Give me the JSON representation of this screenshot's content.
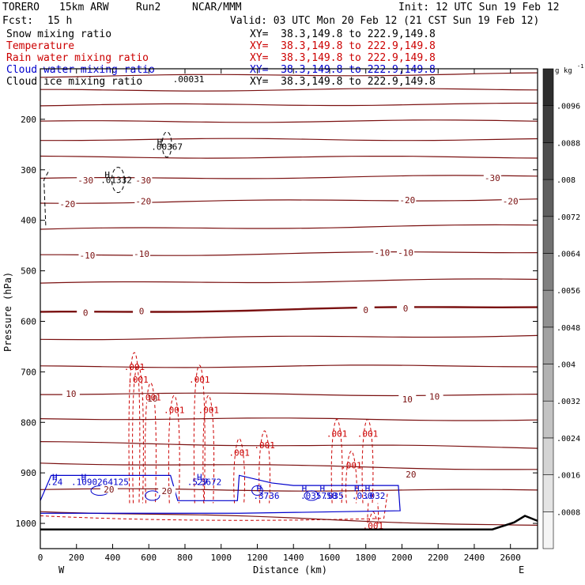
{
  "header": {
    "model": "TORERO",
    "resolution": "15km ARW",
    "run": "Run2",
    "center": "NCAR/MMM",
    "forecast_label": "Fcst:",
    "forecast_hours": "15 h",
    "init": "Init: 12 UTC Sun 19 Feb 12",
    "valid": "Valid: 03 UTC Mon 20 Feb 12 (21 CST Sun 19 Feb 12)"
  },
  "fields": [
    {
      "name": "Snow mixing ratio",
      "xy": "XY=  38.3,149.8 to 222.9,149.8",
      "color": "#000000"
    },
    {
      "name": "Temperature",
      "xy": "XY=  38.3,149.8 to 222.9,149.8",
      "color": "#cc0000"
    },
    {
      "name": "Rain water mixing ratio",
      "xy": "XY=  38.3,149.8 to 222.9,149.8",
      "color": "#cc0000"
    },
    {
      "name": "Cloud water mixing ratio",
      "xy": "XY=  38.3,149.8 to 222.9,149.8",
      "color": "#0000cc"
    },
    {
      "name": "Cloud ice mixing ratio",
      "xy": "XY=  38.3,149.8 to 222.9,149.8",
      "color": "#000000"
    }
  ],
  "chart_data": {
    "type": "heatmap",
    "xlabel": "Distance (km)",
    "ylabel": "Pressure (hPa)",
    "xlim": [
      0,
      2750
    ],
    "ylim": [
      100,
      1050
    ],
    "x_ticks": [
      0,
      200,
      400,
      600,
      800,
      1000,
      1200,
      1400,
      1600,
      1800,
      2000,
      2200,
      2400,
      2600
    ],
    "y_ticks": [
      200,
      300,
      400,
      500,
      600,
      700,
      800,
      900,
      1000
    ],
    "west_label": "W",
    "east_label": "E",
    "colorbar": {
      "unit": "g kg",
      "unit_exponent": "-1",
      "ticks": [
        ".0096",
        ".0088",
        ".008",
        ".0072",
        ".0064",
        ".0056",
        ".0048",
        ".004",
        ".0032",
        ".0024",
        ".0016",
        ".0008"
      ],
      "tick_values": [
        0.0096,
        0.0088,
        0.008,
        0.0072,
        0.0064,
        0.0056,
        0.0048,
        0.004,
        0.0032,
        0.0024,
        0.0016,
        0.0008
      ],
      "min": 0,
      "max": 0.0104
    },
    "temperature_isotherms": [
      {
        "label": "-30",
        "label_positions": [
          [
            250,
            321
          ],
          [
            570,
            321
          ],
          [
            2500,
            316
          ]
        ]
      },
      {
        "label": "-20",
        "label_positions": [
          [
            150,
            368
          ],
          [
            570,
            362
          ],
          [
            2030,
            360
          ],
          [
            2600,
            362
          ]
        ]
      },
      {
        "label": "-10",
        "label_positions": [
          [
            260,
            469
          ],
          [
            560,
            466
          ],
          [
            1890,
            464
          ],
          [
            2020,
            464
          ]
        ]
      },
      {
        "label": "0",
        "label_positions": [
          [
            250,
            583
          ],
          [
            560,
            580
          ],
          [
            1800,
            577
          ],
          [
            2020,
            574
          ]
        ]
      },
      {
        "label": "10",
        "label_positions": [
          [
            170,
            743
          ],
          [
            620,
            753
          ],
          [
            2030,
            754
          ],
          [
            2180,
            749
          ]
        ]
      },
      {
        "label": "20",
        "label_positions": [
          [
            380,
            933
          ],
          [
            700,
            936
          ],
          [
            2050,
            903
          ]
        ]
      }
    ],
    "temperature_lines": [
      {
        "p_left": 115,
        "p_right": 110
      },
      {
        "p_left": 143,
        "p_right": 140
      },
      {
        "p_left": 172,
        "p_right": 170
      },
      {
        "p_left": 205,
        "p_right": 203
      },
      {
        "p_left": 240,
        "p_right": 240
      },
      {
        "p_left": 275,
        "p_right": 275
      },
      {
        "p_left": 318,
        "p_right": 312
      },
      {
        "p_left": 365,
        "p_right": 358
      },
      {
        "p_left": 418,
        "p_right": 410
      },
      {
        "p_left": 470,
        "p_right": 462
      },
      {
        "p_left": 525,
        "p_right": 517
      },
      {
        "p_left": 583,
        "p_right": 570,
        "bold": true
      },
      {
        "p_left": 635,
        "p_right": 628
      },
      {
        "p_left": 690,
        "p_right": 688
      },
      {
        "p_left": 743,
        "p_right": 746
      },
      {
        "p_left": 792,
        "p_right": 795
      },
      {
        "p_left": 840,
        "p_right": 850
      },
      {
        "p_left": 880,
        "p_right": 893
      },
      {
        "p_left": 933,
        "p_right": 935
      },
      {
        "p_left": 975,
        "p_right": 1005
      }
    ],
    "rain_label": ".001",
    "rain_label_positions": [
      [
        520,
        690
      ],
      [
        540,
        715
      ],
      [
        610,
        750
      ],
      [
        740,
        775
      ],
      [
        880,
        715
      ],
      [
        930,
        775
      ],
      [
        1100,
        860
      ],
      [
        1240,
        845
      ],
      [
        1640,
        822
      ],
      [
        1720,
        885
      ],
      [
        1810,
        822
      ],
      [
        1840,
        1005
      ]
    ],
    "snow_max_labels": [
      {
        "label": ".01332",
        "x": 420,
        "p": 320
      },
      {
        "label": ".00367",
        "x": 700,
        "p": 254
      },
      {
        "label": ".00031",
        "x": 820,
        "p": 120
      }
    ],
    "cloud_water_labels": [
      {
        "label": ".24",
        "x": 80,
        "p": 918
      },
      {
        "label": ".1090264125",
        "x": 330,
        "p": 918
      },
      {
        "label": ".527",
        "x": 870,
        "p": 918
      },
      {
        "label": ".3672",
        "x": 930,
        "p": 918
      },
      {
        "label": ".3736",
        "x": 1250,
        "p": 945
      },
      {
        "label": ".035758",
        "x": 1540,
        "p": 945
      },
      {
        "label": ".035",
        "x": 1620,
        "p": 945
      },
      {
        "label": ".030",
        "x": 1780,
        "p": 945
      },
      {
        "label": ".032",
        "x": 1850,
        "p": 945
      }
    ],
    "h_markers": [
      {
        "x": 660,
        "p": 245,
        "color": "#000000"
      },
      {
        "x": 370,
        "p": 310,
        "color": "#000000"
      },
      {
        "x": 80,
        "p": 908,
        "color": "#0000cc"
      },
      {
        "x": 240,
        "p": 908,
        "color": "#0000cc"
      },
      {
        "x": 880,
        "p": 908,
        "color": "#0000cc"
      },
      {
        "x": 1210,
        "p": 930,
        "color": "#0000cc"
      },
      {
        "x": 1460,
        "p": 930,
        "color": "#0000cc"
      },
      {
        "x": 1560,
        "p": 930,
        "color": "#0000cc"
      },
      {
        "x": 1750,
        "p": 930,
        "color": "#0000cc"
      },
      {
        "x": 1810,
        "p": 930,
        "color": "#0000cc"
      }
    ],
    "terrain": [
      [
        0,
        1012
      ],
      [
        2500,
        1012
      ],
      [
        2620,
        998
      ],
      [
        2680,
        985
      ],
      [
        2750,
        995
      ]
    ]
  }
}
